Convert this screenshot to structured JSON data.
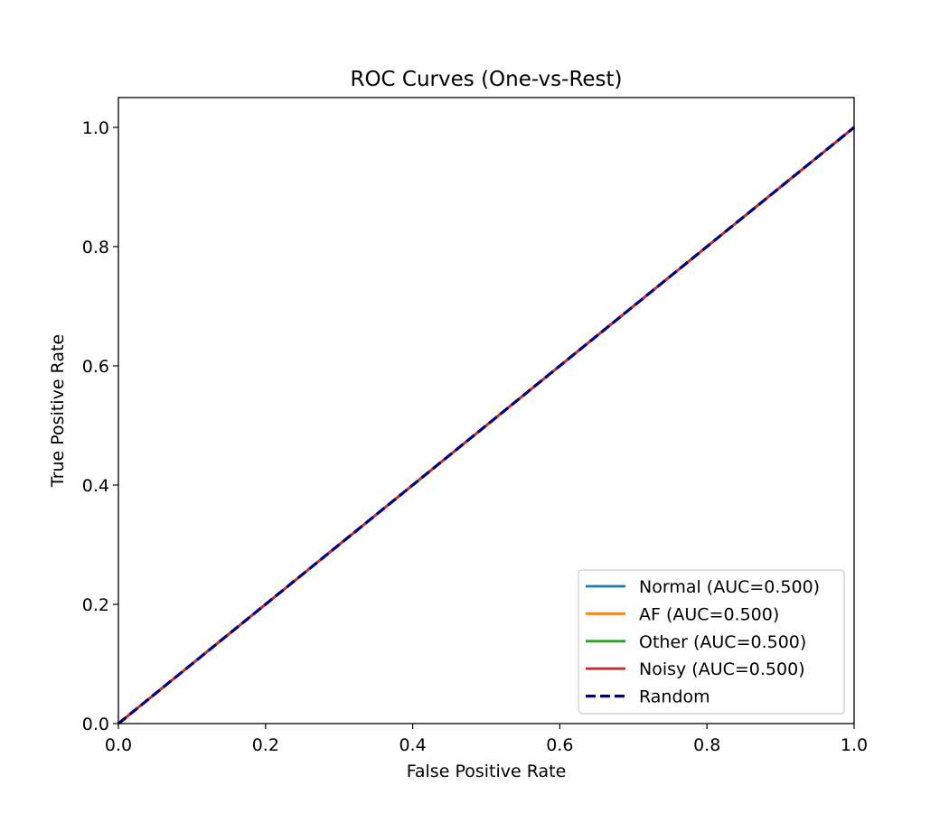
{
  "chart_data": {
    "type": "line",
    "title": "ROC Curves (One-vs-Rest)",
    "xlabel": "False Positive Rate",
    "ylabel": "True Positive Rate",
    "xlim": [
      0.0,
      1.0
    ],
    "ylim": [
      0.0,
      1.05
    ],
    "xticks": [
      "0.0",
      "0.2",
      "0.4",
      "0.6",
      "0.8",
      "1.0"
    ],
    "yticks": [
      "0.0",
      "0.2",
      "0.4",
      "0.6",
      "0.8",
      "1.0"
    ],
    "grid": false,
    "legend_position": "lower-right",
    "series": [
      {
        "name": "Normal (AUC=0.500)",
        "color": "#1f77b4",
        "style": "solid",
        "x": [
          0.0,
          1.0
        ],
        "y": [
          0.0,
          1.0
        ]
      },
      {
        "name": "AF (AUC=0.500)",
        "color": "#ff7f0e",
        "style": "solid",
        "x": [
          0.0,
          1.0
        ],
        "y": [
          0.0,
          1.0
        ]
      },
      {
        "name": "Other (AUC=0.500)",
        "color": "#2ca02c",
        "style": "solid",
        "x": [
          0.0,
          1.0
        ],
        "y": [
          0.0,
          1.0
        ]
      },
      {
        "name": "Noisy (AUC=0.500)",
        "color": "#d62728",
        "style": "solid",
        "x": [
          0.0,
          1.0
        ],
        "y": [
          0.0,
          1.0
        ]
      },
      {
        "name": "Random",
        "color": "#000080",
        "style": "dashed",
        "x": [
          0.0,
          1.0
        ],
        "y": [
          0.0,
          1.0
        ]
      }
    ]
  }
}
